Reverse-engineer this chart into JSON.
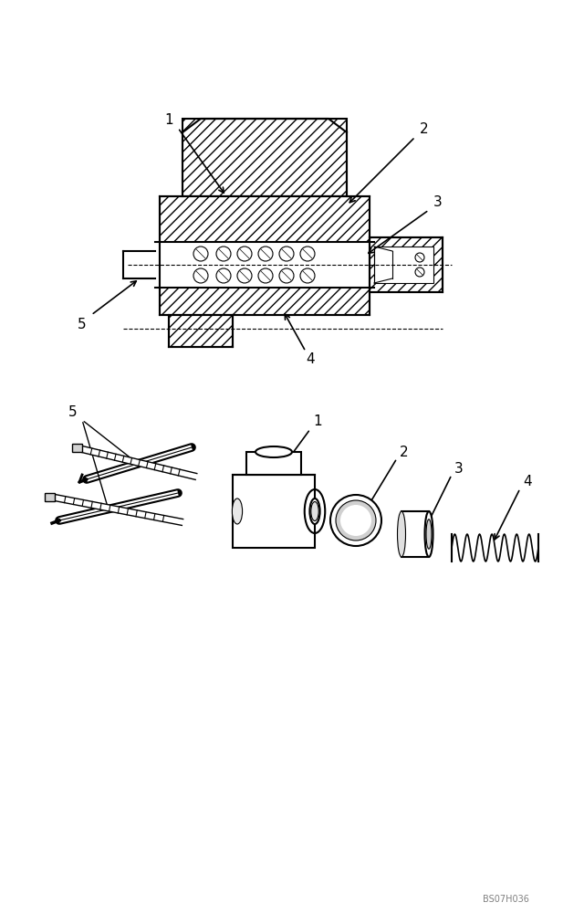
{
  "bg_color": "#ffffff",
  "line_color": "#000000",
  "label_color": "#000000",
  "fig_width": 6.4,
  "fig_height": 10.0,
  "watermark": "BS07H036",
  "top_labels": [
    "1",
    "2",
    "3",
    "4",
    "5"
  ],
  "bottom_labels": [
    "1",
    "2",
    "3",
    "4",
    "5"
  ]
}
